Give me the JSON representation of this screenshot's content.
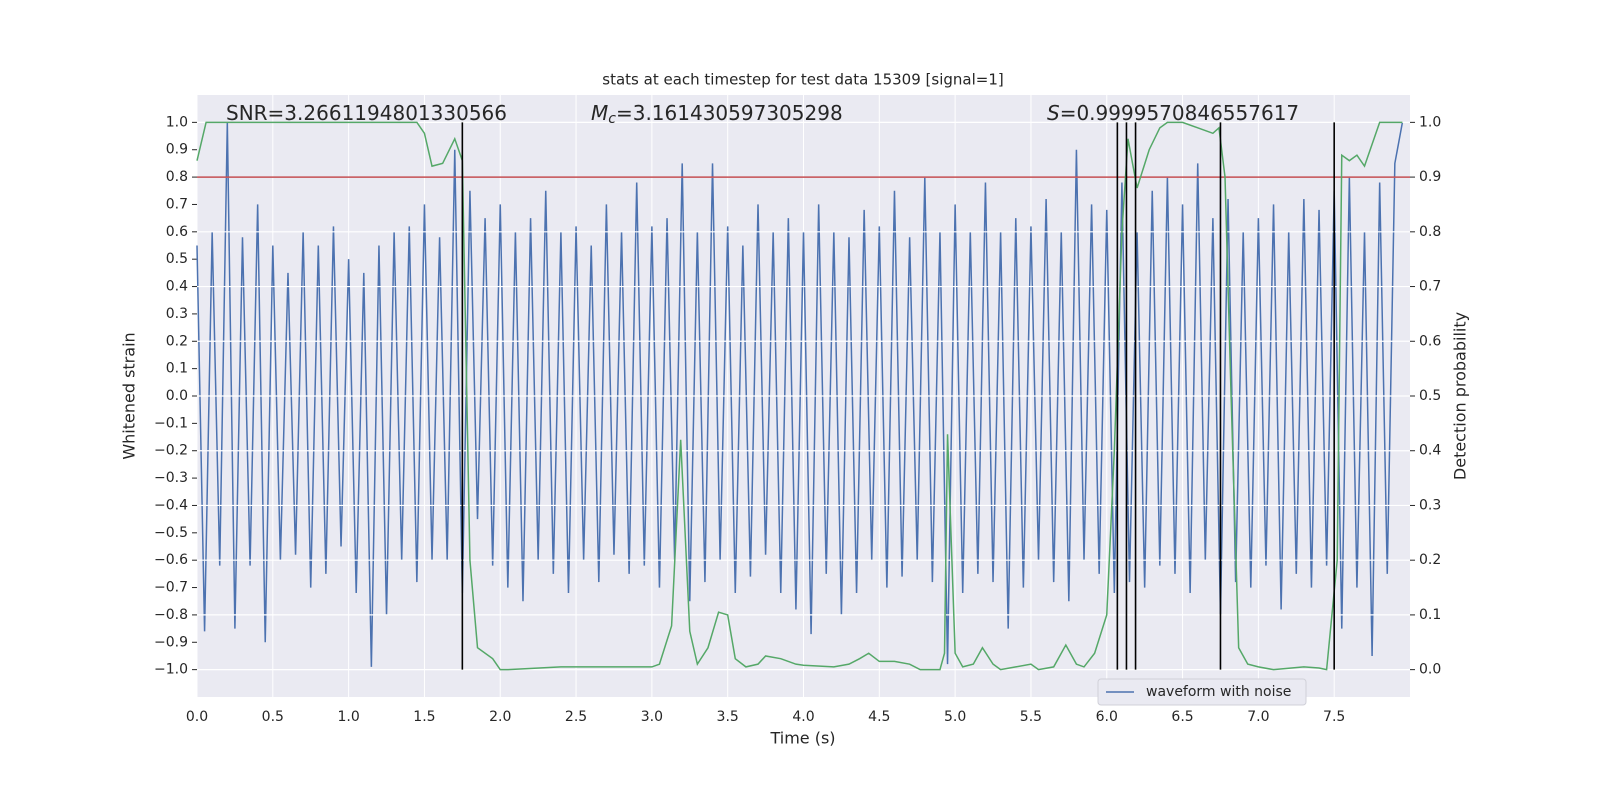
{
  "chart_data": {
    "type": "line",
    "title": "stats at each timestep for test data 15309 [signal=1]",
    "xlabel": "Time (s)",
    "ylabel": "Whitened strain",
    "y2label": "Detection probability",
    "annotations": [
      {
        "text": "SNR=3.2661194801330566"
      },
      {
        "symbol": "M",
        "subscript": "c",
        "text": "=3.161430597305298"
      },
      {
        "symbol": "S",
        "text": "=0.9999570846557617"
      }
    ],
    "xlim": [
      0,
      8
    ],
    "ylim": [
      -1.1,
      1.1
    ],
    "y2lim": [
      -0.05,
      1.05
    ],
    "xticks": [
      {
        "value": 0,
        "label": "0.0"
      },
      0.5,
      {
        "value": 1,
        "label": "1.0"
      },
      1.5,
      {
        "value": 2,
        "label": "2.0"
      },
      2.5,
      {
        "value": 3,
        "label": "3.0"
      },
      3.5,
      {
        "value": 4,
        "label": "4.0"
      },
      4.5,
      {
        "value": 5,
        "label": "5.0"
      },
      5.5,
      {
        "value": 6,
        "label": "6.0"
      },
      6.5,
      {
        "value": 7,
        "label": "7.0"
      },
      7.5
    ],
    "yticks": [
      {
        "value": -1,
        "label": "−1.0"
      },
      {
        "value": -0.9,
        "label": "−0.9"
      },
      {
        "value": -0.8,
        "label": "−0.8"
      },
      {
        "value": -0.7,
        "label": "−0.7"
      },
      {
        "value": -0.6,
        "label": "−0.6"
      },
      {
        "value": -0.5,
        "label": "−0.5"
      },
      {
        "value": -0.4,
        "label": "−0.4"
      },
      {
        "value": -0.3,
        "label": "−0.3"
      },
      {
        "value": -0.2,
        "label": "−0.2"
      },
      {
        "value": -0.1,
        "label": "−0.1"
      },
      {
        "value": 0,
        "label": "0.0"
      },
      0.1,
      0.2,
      0.3,
      0.4,
      0.5,
      0.6,
      0.7,
      0.8,
      0.9,
      {
        "value": 1,
        "label": "1.0"
      }
    ],
    "y2ticks": [
      {
        "value": 0,
        "label": "0.0"
      },
      0.1,
      0.2,
      0.3,
      0.4,
      0.5,
      0.6,
      0.7,
      0.8,
      0.9,
      {
        "value": 1,
        "label": "1.0"
      }
    ],
    "grid": true,
    "series": [
      {
        "name": "waveform with noise",
        "color": "#4c72b0",
        "x": [
          0,
          0.05,
          0.1,
          0.15,
          0.2,
          0.25,
          0.3,
          0.35,
          0.4,
          0.45,
          0.5,
          0.55,
          0.6,
          0.65,
          0.7,
          0.75,
          0.8,
          0.85,
          0.9,
          0.95,
          1,
          1.05,
          1.1,
          1.15,
          1.2,
          1.25,
          1.3,
          1.35,
          1.4,
          1.45,
          1.5,
          1.55,
          1.6,
          1.65,
          1.7,
          1.75,
          1.8,
          1.85,
          1.9,
          1.95,
          2,
          2.05,
          2.1,
          2.15,
          2.2,
          2.25,
          2.3,
          2.35,
          2.4,
          2.45,
          2.5,
          2.55,
          2.6,
          2.65,
          2.7,
          2.75,
          2.8,
          2.85,
          2.9,
          2.95,
          3,
          3.05,
          3.1,
          3.15,
          3.2,
          3.25,
          3.3,
          3.35,
          3.4,
          3.45,
          3.5,
          3.55,
          3.6,
          3.65,
          3.7,
          3.75,
          3.8,
          3.85,
          3.9,
          3.95,
          4,
          4.05,
          4.1,
          4.15,
          4.2,
          4.25,
          4.3,
          4.35,
          4.4,
          4.45,
          4.5,
          4.55,
          4.6,
          4.65,
          4.7,
          4.75,
          4.8,
          4.85,
          4.9,
          4.95,
          5,
          5.05,
          5.1,
          5.15,
          5.2,
          5.25,
          5.3,
          5.35,
          5.4,
          5.45,
          5.5,
          5.55,
          5.6,
          5.65,
          5.7,
          5.75,
          5.8,
          5.85,
          5.9,
          5.95,
          6,
          6.05,
          6.1,
          6.15,
          6.2,
          6.25,
          6.3,
          6.35,
          6.4,
          6.45,
          6.5,
          6.55,
          6.6,
          6.65,
          6.7,
          6.75,
          6.8,
          6.85,
          6.9,
          6.95,
          7,
          7.05,
          7.1,
          7.15,
          7.2,
          7.25,
          7.3,
          7.35,
          7.4,
          7.45,
          7.5,
          7.55,
          7.6,
          7.65,
          7.7,
          7.75,
          7.8,
          7.85,
          7.9,
          7.95
        ],
        "values": [
          0.55,
          -0.86,
          0.6,
          -0.62,
          1.0,
          -0.85,
          0.58,
          -0.62,
          0.7,
          -0.9,
          0.55,
          -0.6,
          0.45,
          -0.58,
          0.6,
          -0.7,
          0.55,
          -0.65,
          0.62,
          -0.55,
          0.5,
          -0.72,
          0.45,
          -0.99,
          0.55,
          -0.8,
          0.6,
          -0.6,
          0.62,
          -0.68,
          0.7,
          -0.6,
          0.58,
          -0.6,
          0.9,
          -0.72,
          0.75,
          -0.45,
          0.65,
          -0.62,
          0.7,
          -0.7,
          0.6,
          -0.75,
          0.65,
          -0.6,
          0.75,
          -0.65,
          0.6,
          -0.72,
          0.62,
          -0.6,
          0.55,
          -0.68,
          0.7,
          -0.58,
          0.6,
          -0.65,
          0.78,
          -0.62,
          0.62,
          -0.7,
          0.65,
          -0.6,
          0.85,
          -0.75,
          0.6,
          -0.68,
          0.85,
          -0.6,
          0.62,
          -0.72,
          0.55,
          -0.66,
          0.7,
          -0.58,
          0.6,
          -0.72,
          0.65,
          -0.78,
          0.6,
          -0.87,
          0.7,
          -0.65,
          0.6,
          -0.8,
          0.58,
          -0.72,
          0.68,
          -0.6,
          0.62,
          -0.7,
          0.75,
          -0.66,
          0.58,
          -0.6,
          0.8,
          -0.68,
          0.6,
          -0.98,
          0.7,
          -0.72,
          0.6,
          -0.65,
          0.78,
          -0.68,
          0.6,
          -0.85,
          0.65,
          -0.7,
          0.62,
          -0.6,
          0.72,
          -0.68,
          0.6,
          -0.75,
          0.9,
          -0.6,
          0.7,
          -0.65,
          0.68,
          -0.72,
          0.78,
          -0.68,
          0.6,
          -0.7,
          0.75,
          -0.62,
          0.8,
          -0.65,
          0.7,
          -0.72,
          0.85,
          -0.6,
          0.65,
          -0.8,
          0.72,
          -0.68,
          0.6,
          -0.7,
          0.65,
          -0.62,
          0.7,
          -0.78,
          0.6,
          -0.65,
          0.72,
          -0.7,
          0.68,
          -0.62,
          0.75,
          -0.85,
          0.8,
          -0.7,
          0.6,
          -0.95,
          0.78,
          -0.65,
          0.85,
          1.0
        ]
      },
      {
        "color": "#55a868",
        "axis": "y2",
        "x": [
          0,
          0.06,
          1.45,
          1.5,
          1.55,
          1.62,
          1.7,
          1.75,
          1.8,
          1.85,
          1.95,
          2.0,
          2.05,
          2.4,
          3.0,
          3.05,
          3.13,
          3.19,
          3.25,
          3.3,
          3.37,
          3.44,
          3.5,
          3.55,
          3.62,
          3.7,
          3.75,
          3.85,
          3.95,
          4.0,
          4.2,
          4.3,
          4.37,
          4.43,
          4.5,
          4.6,
          4.7,
          4.77,
          4.9,
          4.93,
          4.95,
          5.0,
          5.05,
          5.12,
          5.18,
          5.25,
          5.3,
          5.4,
          5.5,
          5.55,
          5.65,
          5.73,
          5.8,
          5.85,
          5.92,
          6.0,
          6.05,
          6.1,
          6.14,
          6.2,
          6.28,
          6.35,
          6.4,
          6.5,
          6.6,
          6.7,
          6.74,
          6.78,
          6.82,
          6.87,
          6.93,
          7.0,
          7.1,
          7.3,
          7.4,
          7.45,
          7.52,
          7.55,
          7.6,
          7.65,
          7.7,
          7.75,
          7.8,
          7.95
        ],
        "values": [
          0.93,
          1.0,
          1.0,
          0.98,
          0.92,
          0.925,
          0.97,
          0.93,
          0.2,
          0.04,
          0.02,
          0.0,
          0.0,
          0.005,
          0.005,
          0.01,
          0.08,
          0.42,
          0.07,
          0.01,
          0.04,
          0.105,
          0.1,
          0.02,
          0.005,
          0.01,
          0.025,
          0.02,
          0.01,
          0.008,
          0.005,
          0.01,
          0.02,
          0.03,
          0.015,
          0.015,
          0.01,
          0.0,
          0.0,
          0.03,
          0.43,
          0.03,
          0.005,
          0.01,
          0.04,
          0.01,
          0.0,
          0.005,
          0.01,
          0.0,
          0.005,
          0.045,
          0.01,
          0.005,
          0.03,
          0.1,
          0.4,
          0.8,
          0.97,
          0.88,
          0.95,
          0.99,
          1.0,
          1.0,
          0.99,
          0.98,
          0.99,
          0.9,
          0.5,
          0.04,
          0.01,
          0.005,
          0.0,
          0.005,
          0.003,
          0.0,
          0.2,
          0.94,
          0.93,
          0.94,
          0.92,
          0.96,
          1.0,
          1.0
        ]
      }
    ],
    "vlines": [
      1.75,
      6.07,
      6.13,
      6.19,
      6.75,
      7.5
    ],
    "vline_color": "#000000",
    "threshold": 0.9,
    "threshold_color": "#c44e52"
  }
}
